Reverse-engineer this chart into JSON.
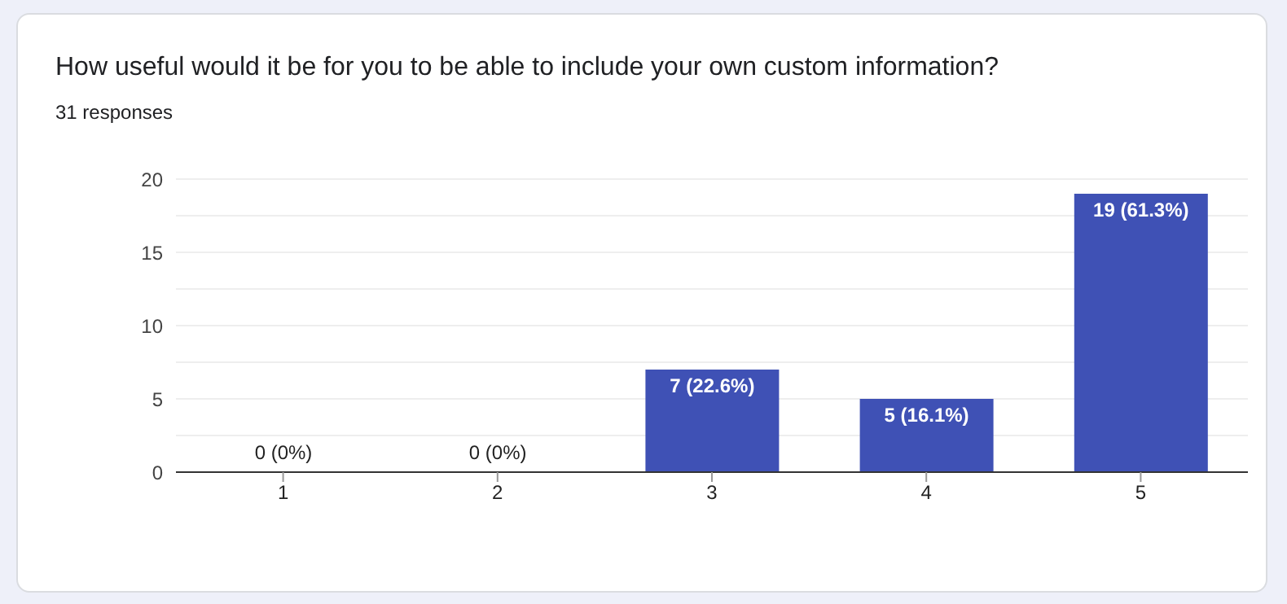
{
  "chart_data": {
    "type": "bar",
    "title": "How useful would it be for you to be able to include your own custom information?",
    "subtitle": "31 responses",
    "categories": [
      "1",
      "2",
      "3",
      "4",
      "5"
    ],
    "values": [
      0,
      0,
      7,
      5,
      19
    ],
    "value_labels": [
      "0 (0%)",
      "0 (0%)",
      "7 (22.6%)",
      "5 (16.1%)",
      "19 (61.3%)"
    ],
    "color": "#3f51b5",
    "ylim": [
      0,
      20
    ],
    "yticks": [
      0,
      {
        "value": 2.5,
        "label": null
      },
      5,
      {
        "value": 7.5,
        "label": null
      },
      10,
      {
        "value": 12.5,
        "label": null
      },
      15,
      {
        "value": 17.5,
        "label": null
      },
      20
    ],
    "grid": "y"
  }
}
